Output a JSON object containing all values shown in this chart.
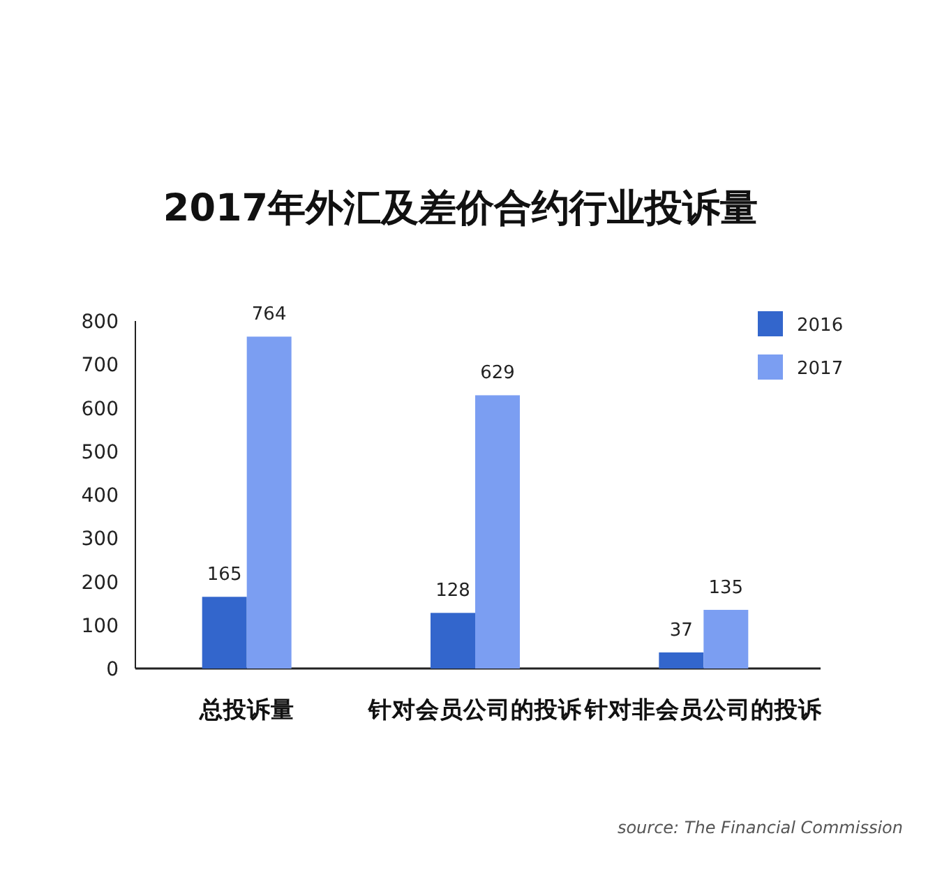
{
  "chart_data": {
    "type": "bar",
    "title": "2017年外汇及差价合约行业投诉量",
    "categories": [
      "总投诉量",
      "针对会员公司的投诉",
      "针对非会员公司的投诉"
    ],
    "series": [
      {
        "name": "2016",
        "color": "#3366cc",
        "values": [
          165,
          128,
          37
        ]
      },
      {
        "name": "2017",
        "color": "#7b9ef2",
        "values": [
          764,
          629,
          135
        ]
      }
    ],
    "ylim": [
      0,
      800
    ],
    "yticks": [
      0,
      100,
      200,
      300,
      400,
      500,
      600,
      700,
      800
    ],
    "data_labels": true,
    "legend": "top right",
    "annotations": [
      "source: The Financial Commission"
    ]
  }
}
